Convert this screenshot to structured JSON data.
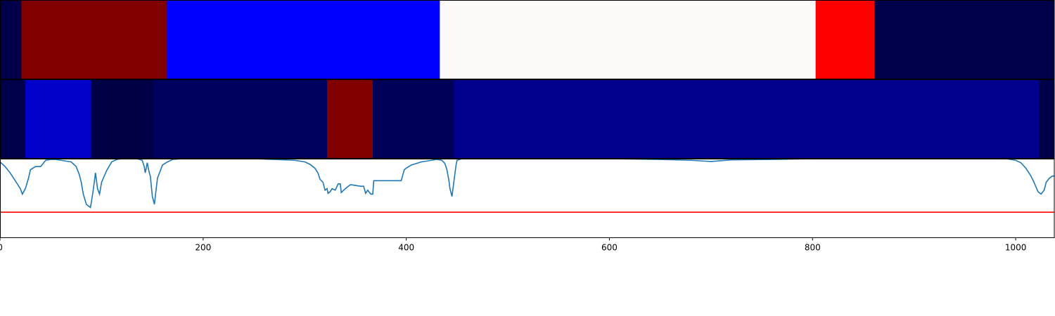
{
  "chart_data": [
    {
      "type": "heatmap",
      "xlim": [
        0,
        1038
      ],
      "segments": [
        {
          "start": 0,
          "end": 21,
          "color": "#00004a"
        },
        {
          "start": 21,
          "end": 164,
          "color": "#800000"
        },
        {
          "start": 164,
          "end": 433,
          "color": "#0000ff"
        },
        {
          "start": 433,
          "end": 803,
          "color": "#fffafa"
        },
        {
          "start": 803,
          "end": 861,
          "color": "#ff0000"
        },
        {
          "start": 861,
          "end": 1038,
          "color": "#00004a"
        }
      ]
    },
    {
      "type": "heatmap",
      "xlim": [
        0,
        1038
      ],
      "segments": [
        {
          "start": 0,
          "end": 25,
          "color": "#00004a"
        },
        {
          "start": 25,
          "end": 90,
          "color": "#0000c8"
        },
        {
          "start": 90,
          "end": 151,
          "color": "#000046"
        },
        {
          "start": 151,
          "end": 322,
          "color": "#00005f"
        },
        {
          "start": 322,
          "end": 367,
          "color": "#800000"
        },
        {
          "start": 367,
          "end": 447,
          "color": "#000058"
        },
        {
          "start": 447,
          "end": 1023,
          "color": "#00008c"
        },
        {
          "start": 1023,
          "end": 1038,
          "color": "#00004a"
        }
      ]
    },
    {
      "type": "line",
      "xlim": [
        0,
        1038
      ],
      "ylim": [
        0,
        1
      ],
      "xticks": [
        "0",
        "200",
        "400",
        "600",
        "800",
        "1000"
      ],
      "xtick_values": [
        0,
        200,
        400,
        600,
        800,
        1000
      ],
      "threshold": 0.32,
      "colors": {
        "line": "#1f77b4",
        "threshold": "#ff0000"
      },
      "series": [
        {
          "x": [
            0,
            5,
            10,
            15,
            20,
            22,
            25,
            28,
            30,
            35,
            40,
            45,
            50,
            55,
            60,
            65,
            70,
            75,
            78,
            80,
            82,
            85,
            87,
            89,
            90,
            92,
            94,
            96,
            98,
            100,
            105,
            110,
            115,
            120,
            125,
            130,
            135,
            140,
            142,
            143,
            145,
            146,
            147,
            148,
            150,
            152,
            155,
            160,
            165,
            170,
            180,
            200,
            250,
            270,
            290,
            300,
            305,
            310,
            313,
            315,
            318,
            320,
            322,
            323,
            325,
            327,
            330,
            333,
            335,
            336,
            340,
            345,
            350,
            355,
            358,
            360,
            362,
            365,
            367,
            368,
            380,
            395,
            398,
            400,
            405,
            410,
            415,
            420,
            425,
            430,
            435,
            438,
            440,
            442,
            443,
            445,
            447,
            449,
            450,
            455,
            470,
            500,
            600,
            650,
            680,
            700,
            720,
            760,
            800,
            850,
            900,
            950,
            990,
            1000,
            1005,
            1010,
            1015,
            1018,
            1022,
            1025,
            1028,
            1030,
            1033,
            1036,
            1038
          ],
          "y": [
            0.96,
            0.9,
            0.82,
            0.72,
            0.62,
            0.55,
            0.62,
            0.75,
            0.86,
            0.9,
            0.9,
            0.98,
            0.99,
            0.99,
            0.98,
            0.97,
            0.96,
            0.9,
            0.8,
            0.7,
            0.55,
            0.42,
            0.4,
            0.38,
            0.45,
            0.62,
            0.82,
            0.62,
            0.55,
            0.7,
            0.85,
            0.96,
            0.99,
            1.0,
            1.0,
            1.0,
            1.0,
            0.98,
            0.9,
            0.82,
            0.95,
            0.88,
            0.82,
            0.78,
            0.52,
            0.42,
            0.75,
            0.92,
            0.96,
            0.99,
            1.0,
            1.0,
            1.0,
            0.99,
            0.98,
            0.96,
            0.93,
            0.88,
            0.82,
            0.74,
            0.7,
            0.6,
            0.62,
            0.56,
            0.58,
            0.62,
            0.6,
            0.68,
            0.68,
            0.57,
            0.62,
            0.67,
            0.66,
            0.65,
            0.65,
            0.56,
            0.6,
            0.55,
            0.55,
            0.72,
            0.72,
            0.72,
            0.86,
            0.88,
            0.92,
            0.94,
            0.96,
            0.97,
            0.98,
            0.99,
            0.98,
            0.94,
            0.86,
            0.72,
            0.62,
            0.52,
            0.72,
            0.92,
            0.98,
            1.0,
            1.0,
            1.0,
            1.0,
            0.99,
            0.98,
            0.965,
            0.985,
            0.99,
            1.0,
            1.0,
            1.0,
            1.0,
            1.0,
            0.98,
            0.95,
            0.88,
            0.78,
            0.7,
            0.58,
            0.55,
            0.6,
            0.7,
            0.75,
            0.78,
            0.78
          ]
        }
      ]
    }
  ]
}
